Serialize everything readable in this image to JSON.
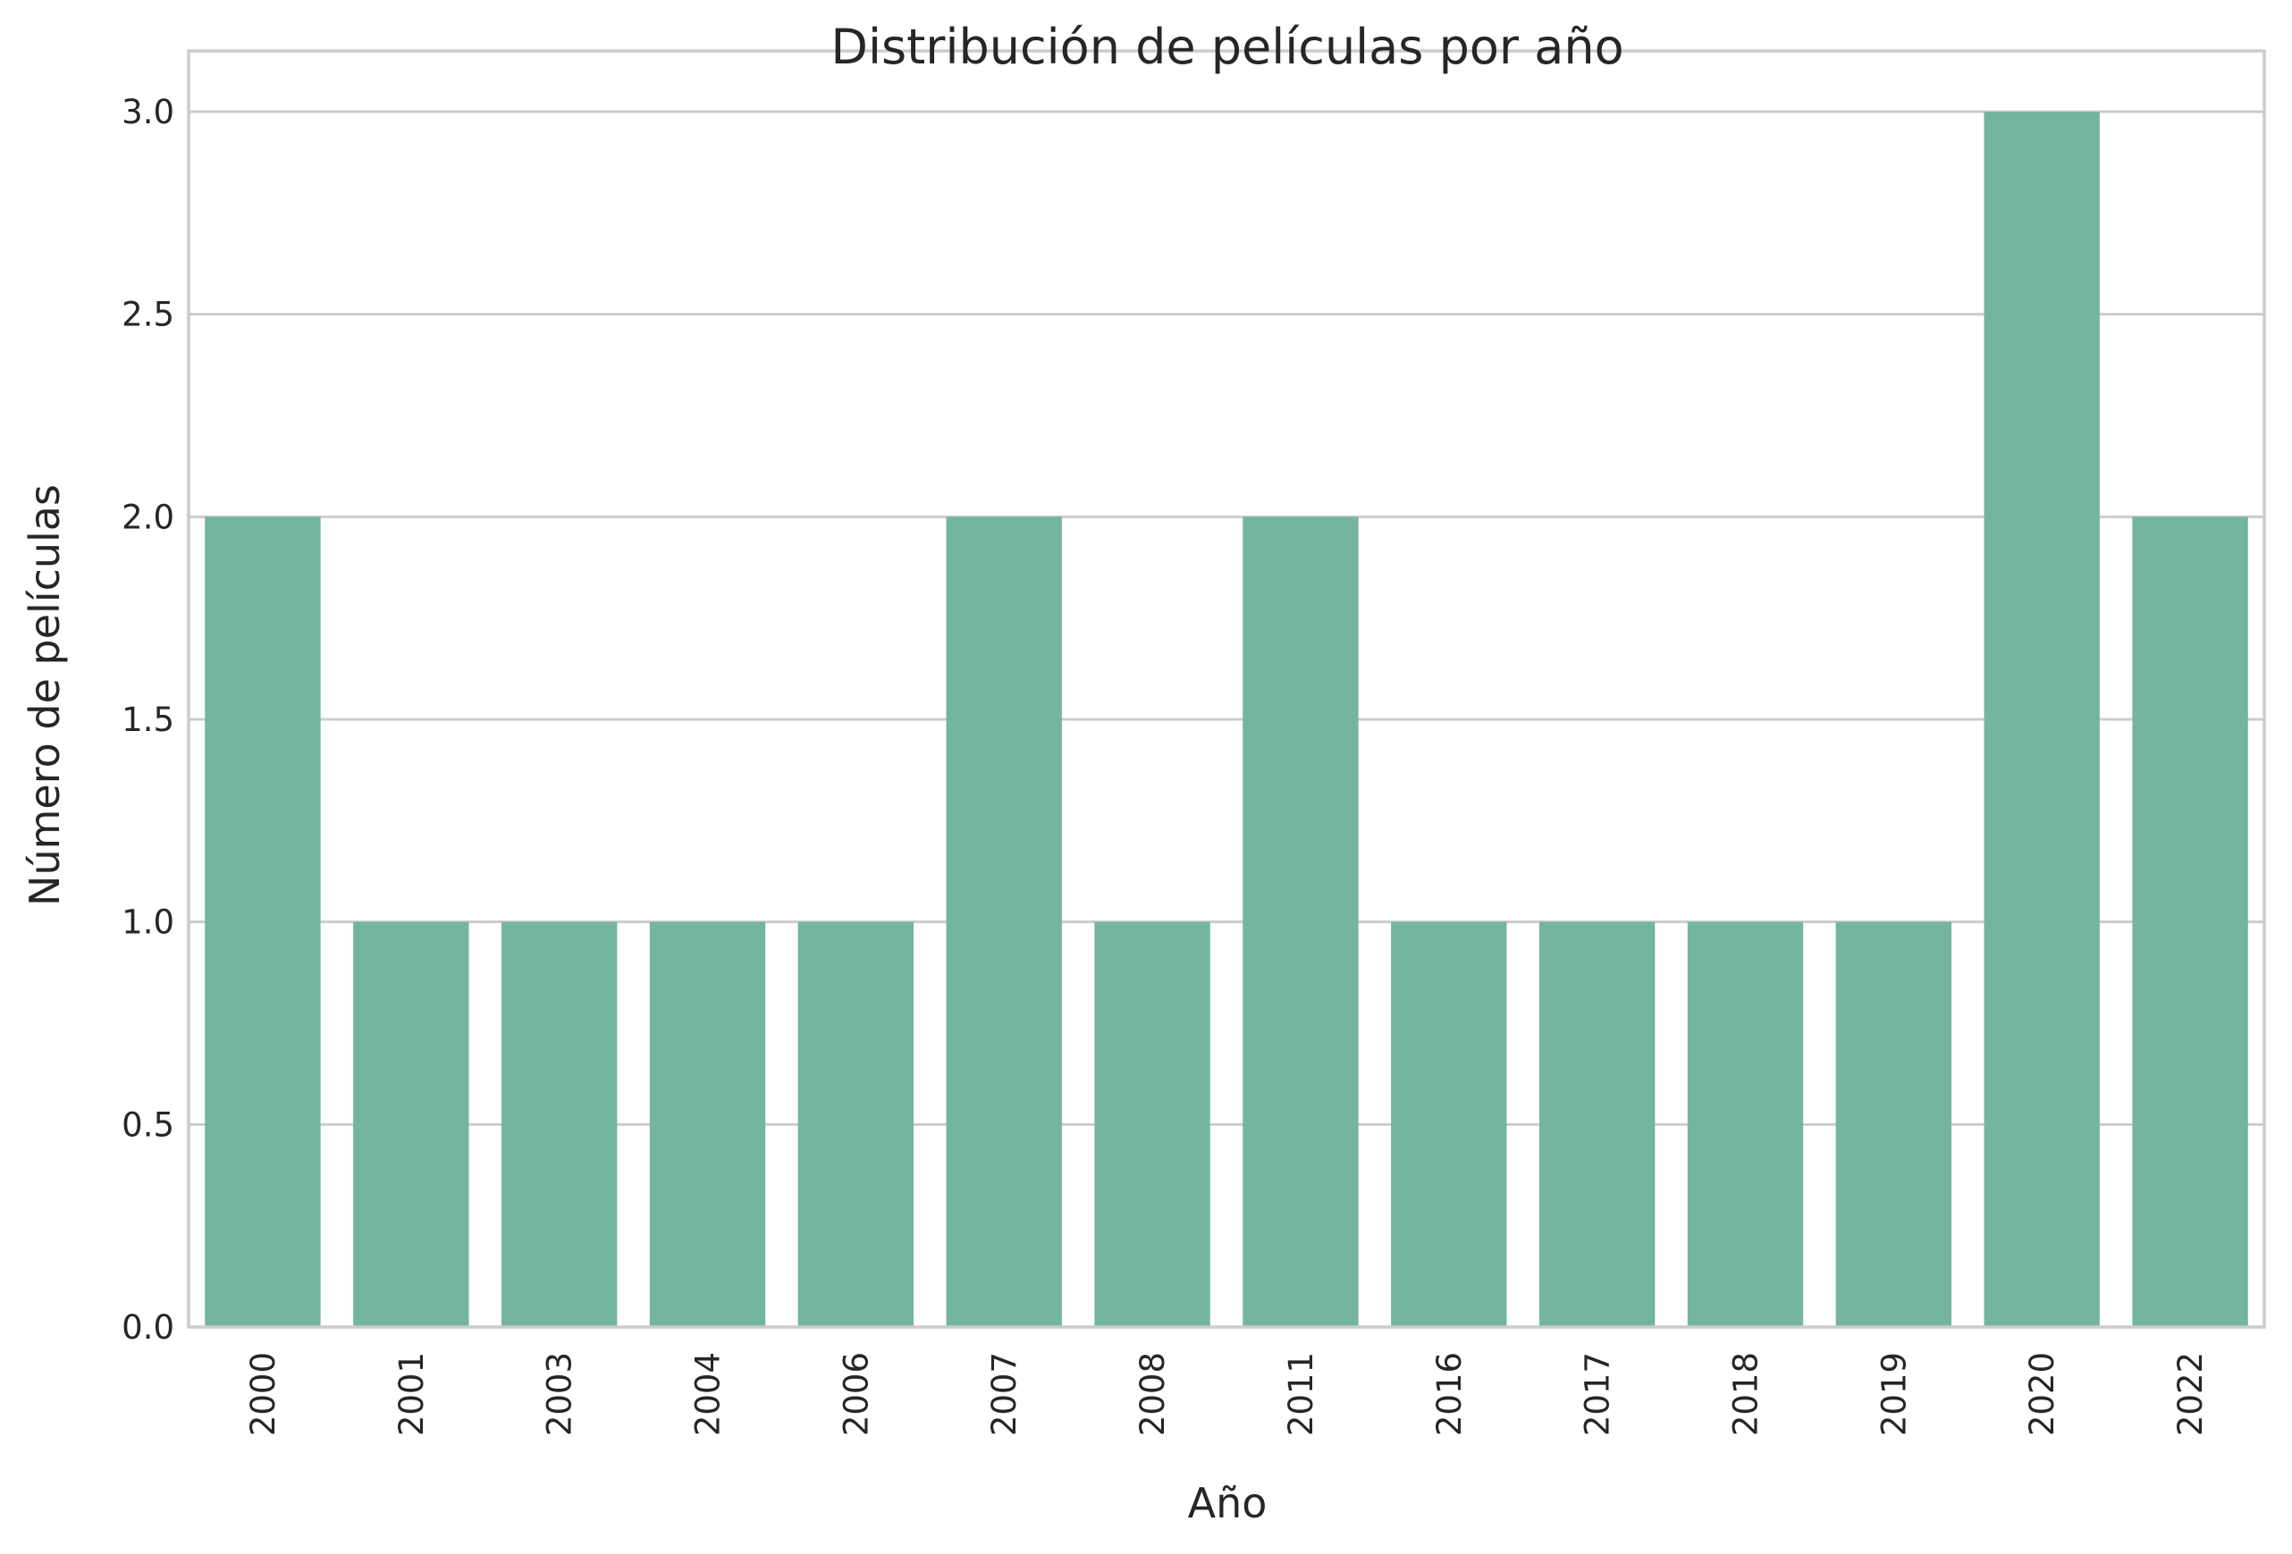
{
  "chart_data": {
    "type": "bar",
    "title": "Distribución de películas por año",
    "xlabel": "Año",
    "ylabel": "Número de películas",
    "categories": [
      "2000",
      "2001",
      "2003",
      "2004",
      "2006",
      "2007",
      "2008",
      "2011",
      "2016",
      "2017",
      "2018",
      "2019",
      "2020",
      "2022"
    ],
    "values": [
      2,
      1,
      1,
      1,
      1,
      2,
      1,
      2,
      1,
      1,
      1,
      1,
      3,
      2
    ],
    "ylim": [
      0,
      3.15
    ],
    "yticks": [
      "0.0",
      "0.5",
      "1.0",
      "1.5",
      "2.0",
      "2.5",
      "3.0"
    ],
    "grid": true,
    "bar_color": "#73b5a0"
  }
}
